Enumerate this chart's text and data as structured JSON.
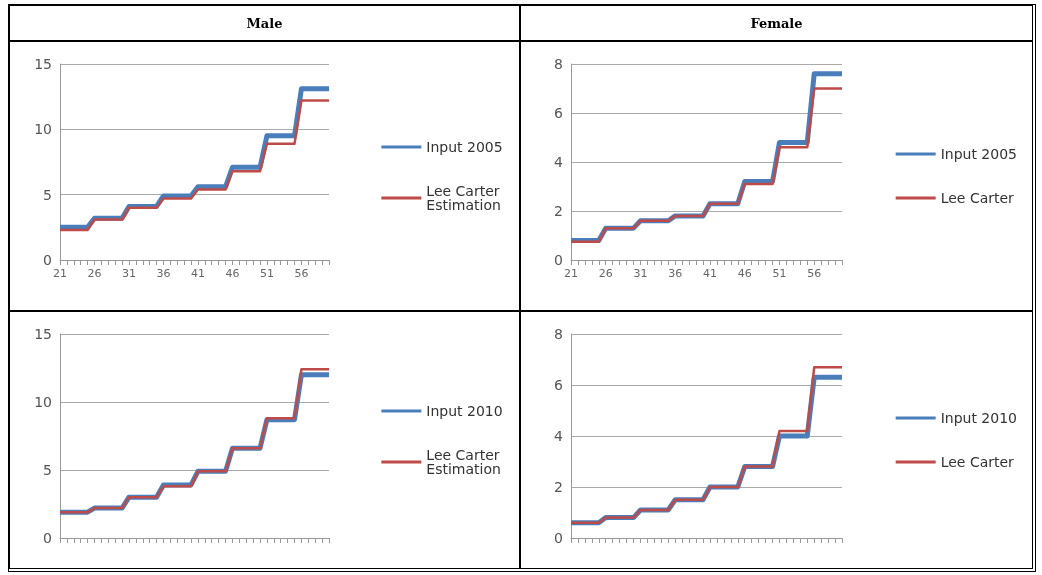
{
  "chart_data": [
    {
      "type": "line",
      "title": "Male",
      "categories": [
        "21",
        null,
        null,
        null,
        null,
        "26",
        null,
        null,
        null,
        null,
        "31",
        null,
        null,
        null,
        null,
        "36",
        null,
        null,
        null,
        null,
        "41",
        null,
        null,
        null,
        null,
        "46",
        null,
        null,
        null,
        null,
        "51",
        null,
        null,
        null,
        null,
        "56",
        null,
        null,
        null,
        null
      ],
      "ylim": [
        0,
        15
      ],
      "yticks": [
        0,
        5,
        10,
        15
      ],
      "grid": "y",
      "legend": "right",
      "marker": "none",
      "series": [
        {
          "name": "Input 2005",
          "color": "#4a7ebb",
          "values": [
            2.5,
            2.5,
            2.5,
            2.5,
            2.5,
            3.2,
            3.2,
            3.2,
            3.2,
            3.2,
            4.1,
            4.1,
            4.1,
            4.1,
            4.1,
            4.9,
            4.9,
            4.9,
            4.9,
            4.9,
            5.6,
            5.6,
            5.6,
            5.6,
            5.6,
            7.1,
            7.1,
            7.1,
            7.1,
            7.1,
            9.5,
            9.5,
            9.5,
            9.5,
            9.5,
            13.1,
            13.1,
            13.1,
            13.1,
            13.1
          ]
        },
        {
          "name": "Lee Carter Estimation",
          "color": "#be4b48",
          "values": [
            2.3,
            2.3,
            2.3,
            2.3,
            2.3,
            3.1,
            3.1,
            3.1,
            3.1,
            3.1,
            4.0,
            4.0,
            4.0,
            4.0,
            4.0,
            4.7,
            4.7,
            4.7,
            4.7,
            4.7,
            5.4,
            5.4,
            5.4,
            5.4,
            5.4,
            6.8,
            6.8,
            6.8,
            6.8,
            6.8,
            8.9,
            8.9,
            8.9,
            8.9,
            8.9,
            12.2,
            12.2,
            12.2,
            12.2,
            12.2
          ]
        }
      ]
    },
    {
      "type": "line",
      "title": "Female",
      "categories": [
        "21",
        null,
        null,
        null,
        null,
        "26",
        null,
        null,
        null,
        null,
        "31",
        null,
        null,
        null,
        null,
        "36",
        null,
        null,
        null,
        null,
        "41",
        null,
        null,
        null,
        null,
        "46",
        null,
        null,
        null,
        null,
        "51",
        null,
        null,
        null,
        null,
        "56",
        null,
        null,
        null,
        null
      ],
      "ylim": [
        0,
        8
      ],
      "yticks": [
        0,
        2,
        4,
        6,
        8
      ],
      "grid": "y",
      "legend": "right",
      "marker": "none",
      "series": [
        {
          "name": "Input 2005",
          "color": "#4a7ebb",
          "values": [
            0.8,
            0.8,
            0.8,
            0.8,
            0.8,
            1.3,
            1.3,
            1.3,
            1.3,
            1.3,
            1.6,
            1.6,
            1.6,
            1.6,
            1.6,
            1.8,
            1.8,
            1.8,
            1.8,
            1.8,
            2.3,
            2.3,
            2.3,
            2.3,
            2.3,
            3.2,
            3.2,
            3.2,
            3.2,
            3.2,
            4.8,
            4.8,
            4.8,
            4.8,
            4.8,
            7.6,
            7.6,
            7.6,
            7.6,
            7.6
          ]
        },
        {
          "name": "Lee Carter",
          "color": "#be4b48",
          "values": [
            0.75,
            0.75,
            0.75,
            0.75,
            0.75,
            1.3,
            1.3,
            1.3,
            1.3,
            1.3,
            1.6,
            1.6,
            1.6,
            1.6,
            1.6,
            1.8,
            1.8,
            1.8,
            1.8,
            1.8,
            2.3,
            2.3,
            2.3,
            2.3,
            2.3,
            3.1,
            3.1,
            3.1,
            3.1,
            3.1,
            4.6,
            4.6,
            4.6,
            4.6,
            4.6,
            7.0,
            7.0,
            7.0,
            7.0,
            7.0
          ]
        }
      ]
    },
    {
      "type": "line",
      "categories": [
        null,
        null,
        null,
        null,
        null,
        null,
        null,
        null,
        null,
        null,
        null,
        null,
        null,
        null,
        null,
        null,
        null,
        null,
        null,
        null,
        null,
        null,
        null,
        null,
        null,
        null,
        null,
        null,
        null,
        null,
        null,
        null,
        null,
        null,
        null,
        null,
        null,
        null,
        null,
        null
      ],
      "ylim": [
        0,
        15
      ],
      "yticks": [
        0,
        5,
        10,
        15
      ],
      "grid": "y",
      "legend": "right",
      "marker": "none",
      "tick_labels": "y",
      "series": [
        {
          "name": "Input 2010",
          "color": "#4a7ebb",
          "values": [
            1.9,
            1.9,
            1.9,
            1.9,
            1.9,
            2.2,
            2.2,
            2.2,
            2.2,
            2.2,
            3.0,
            3.0,
            3.0,
            3.0,
            3.0,
            3.9,
            3.9,
            3.9,
            3.9,
            3.9,
            4.9,
            4.9,
            4.9,
            4.9,
            4.9,
            6.6,
            6.6,
            6.6,
            6.6,
            6.6,
            8.7,
            8.7,
            8.7,
            8.7,
            8.7,
            12.0,
            12.0,
            12.0,
            12.0,
            12.0
          ]
        },
        {
          "name": "Lee Carter Estimation",
          "color": "#be4b48",
          "values": [
            1.9,
            1.9,
            1.9,
            1.9,
            1.9,
            2.2,
            2.2,
            2.2,
            2.2,
            2.2,
            3.0,
            3.0,
            3.0,
            3.0,
            3.0,
            3.8,
            3.8,
            3.8,
            3.8,
            3.8,
            4.9,
            4.9,
            4.9,
            4.9,
            4.9,
            6.6,
            6.6,
            6.6,
            6.6,
            6.6,
            8.8,
            8.8,
            8.8,
            8.8,
            8.8,
            12.4,
            12.4,
            12.4,
            12.4,
            12.4
          ]
        }
      ]
    },
    {
      "type": "line",
      "categories": [
        null,
        null,
        null,
        null,
        null,
        null,
        null,
        null,
        null,
        null,
        null,
        null,
        null,
        null,
        null,
        null,
        null,
        null,
        null,
        null,
        null,
        null,
        null,
        null,
        null,
        null,
        null,
        null,
        null,
        null,
        null,
        null,
        null,
        null,
        null,
        null,
        null,
        null,
        null,
        null
      ],
      "ylim": [
        0,
        8
      ],
      "yticks": [
        0,
        2,
        4,
        6,
        8
      ],
      "grid": "y",
      "legend": "right",
      "marker": "none",
      "tick_labels": "y",
      "series": [
        {
          "name": "Input 2010",
          "color": "#4a7ebb",
          "values": [
            0.6,
            0.6,
            0.6,
            0.6,
            0.6,
            0.8,
            0.8,
            0.8,
            0.8,
            0.8,
            1.1,
            1.1,
            1.1,
            1.1,
            1.1,
            1.5,
            1.5,
            1.5,
            1.5,
            1.5,
            2.0,
            2.0,
            2.0,
            2.0,
            2.0,
            2.8,
            2.8,
            2.8,
            2.8,
            2.8,
            4.0,
            4.0,
            4.0,
            4.0,
            4.0,
            6.3,
            6.3,
            6.3,
            6.3,
            6.3
          ]
        },
        {
          "name": "Lee Carter",
          "color": "#be4b48",
          "values": [
            0.6,
            0.6,
            0.6,
            0.6,
            0.6,
            0.8,
            0.8,
            0.8,
            0.8,
            0.8,
            1.1,
            1.1,
            1.1,
            1.1,
            1.1,
            1.5,
            1.5,
            1.5,
            1.5,
            1.5,
            2.0,
            2.0,
            2.0,
            2.0,
            2.0,
            2.8,
            2.8,
            2.8,
            2.8,
            2.8,
            4.2,
            4.2,
            4.2,
            4.2,
            4.2,
            6.7,
            6.7,
            6.7,
            6.7,
            6.7
          ]
        }
      ]
    }
  ]
}
